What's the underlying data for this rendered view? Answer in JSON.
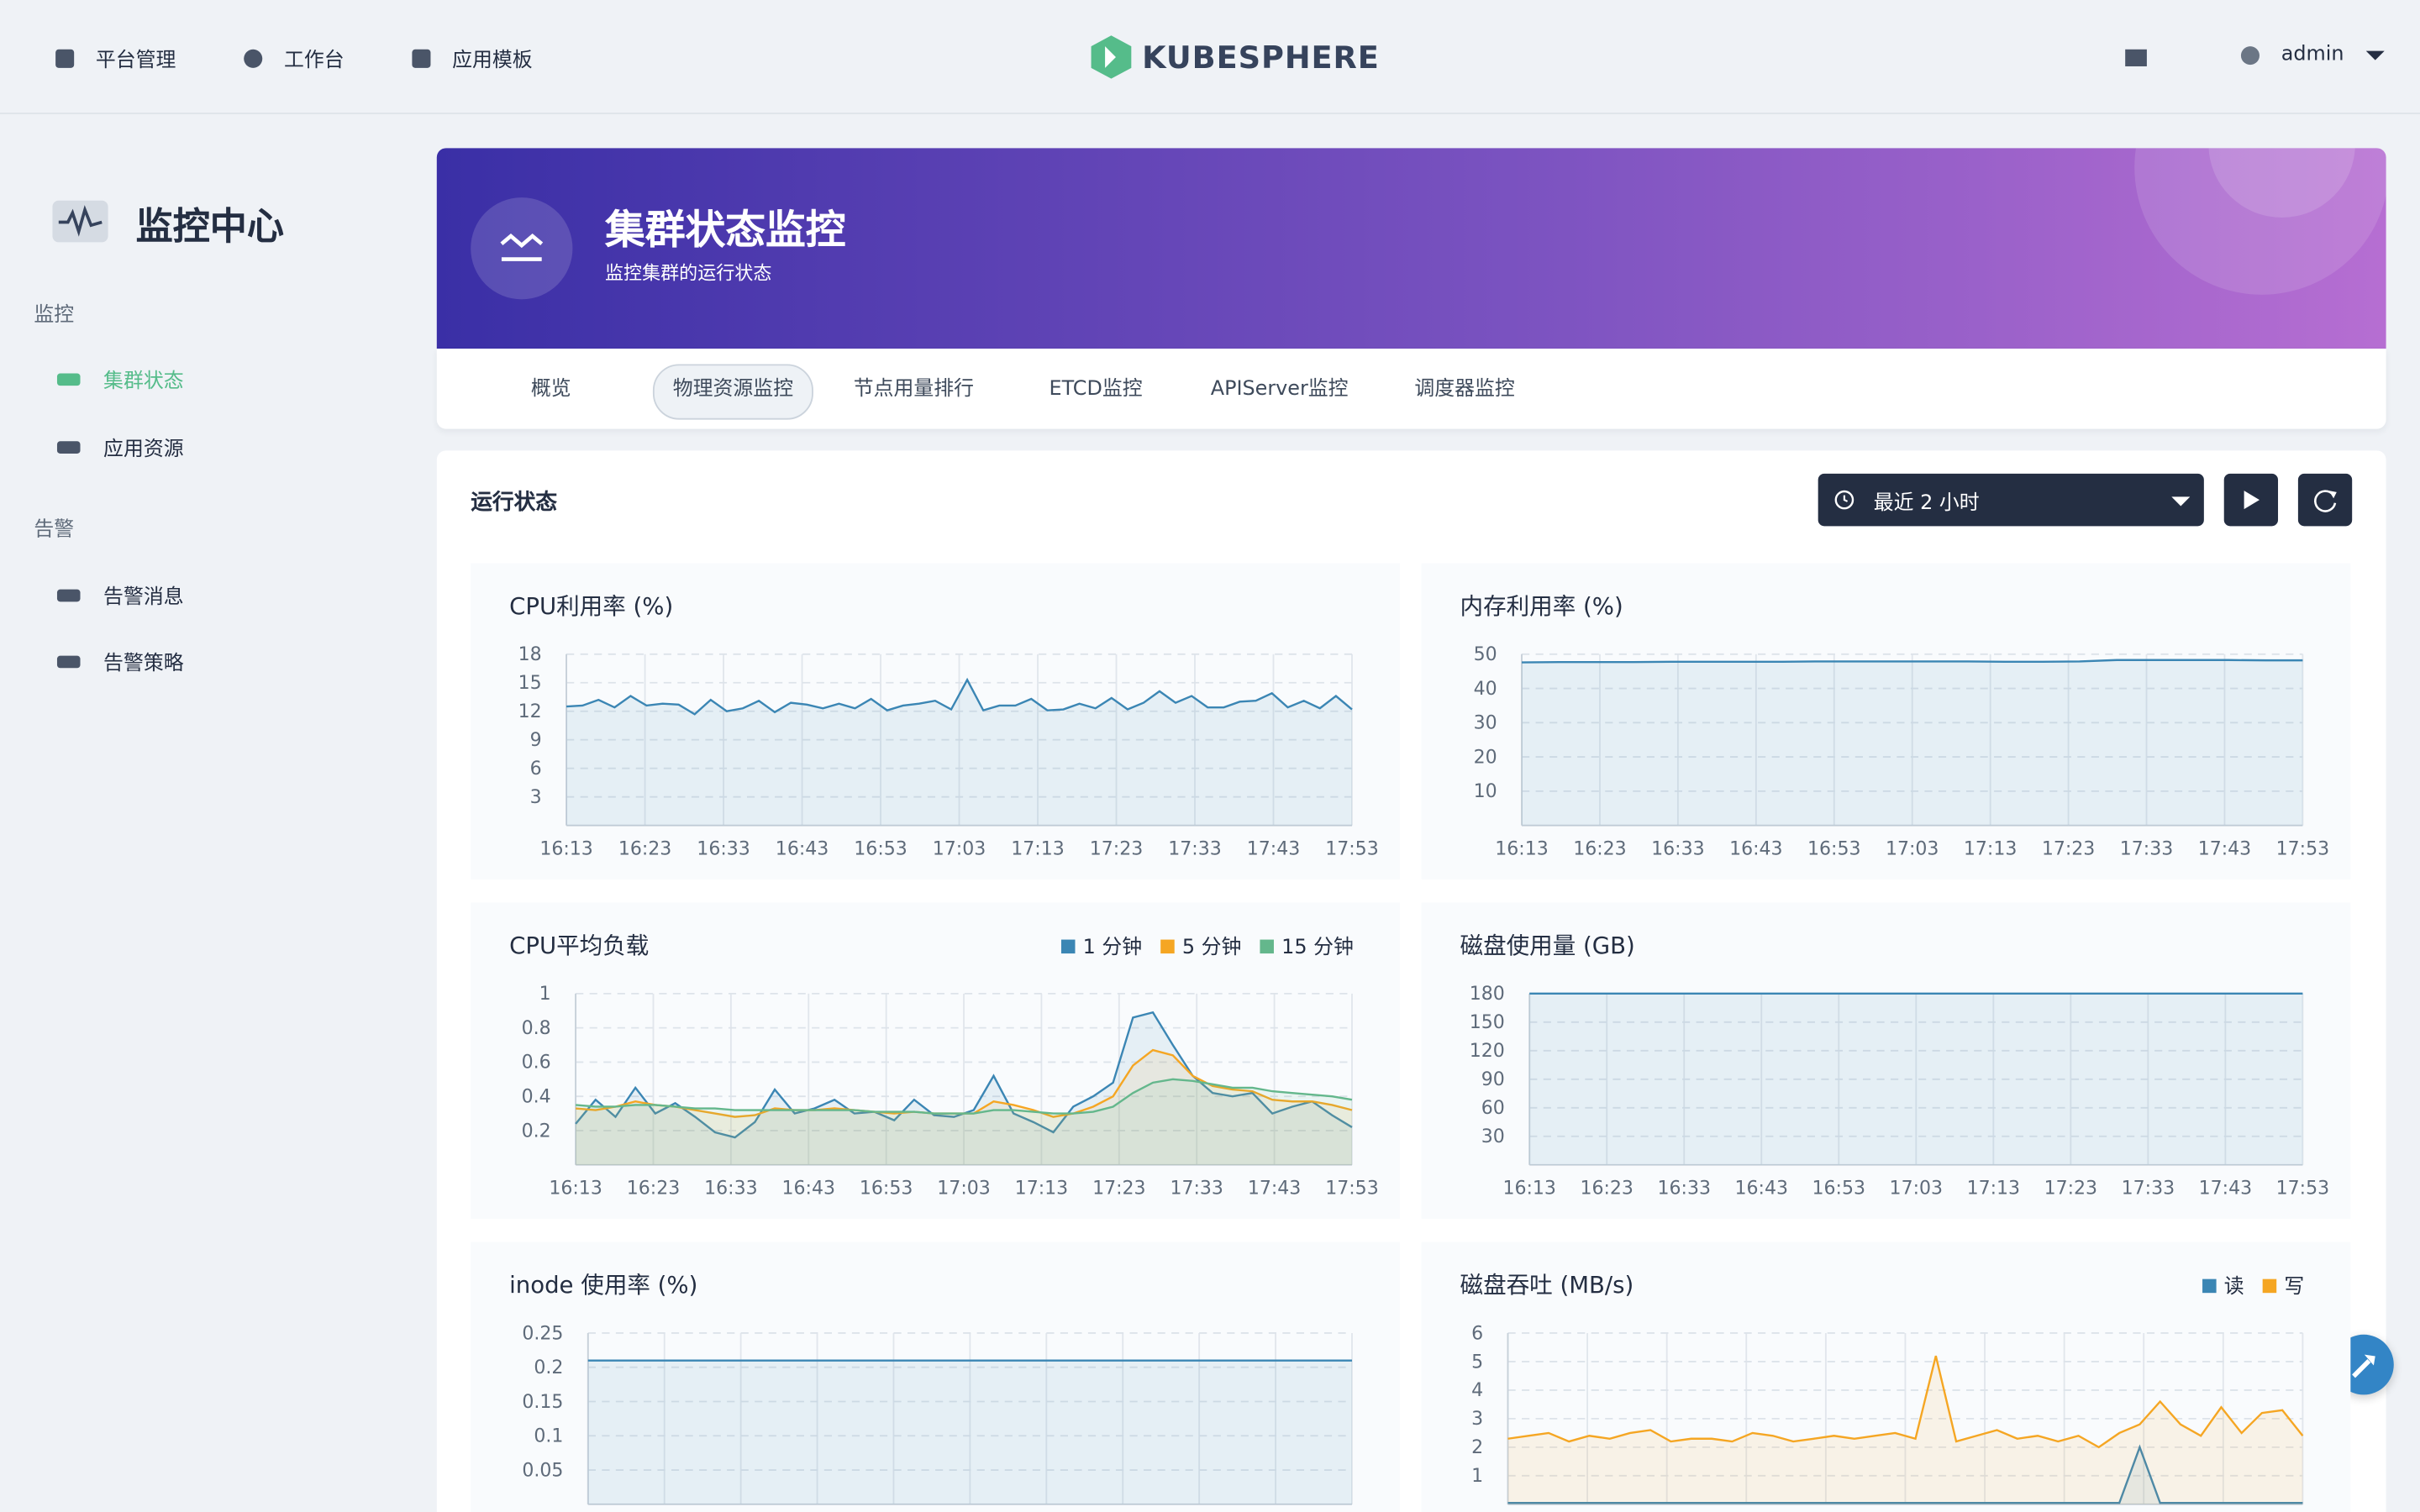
{
  "nav": {
    "items": [
      "平台管理",
      "工作台",
      "应用模板"
    ],
    "logo": "KUBESPHERE",
    "user": "admin"
  },
  "sidebar": {
    "title": "监控中心",
    "groups": [
      {
        "label": "监控",
        "items": [
          "集群状态",
          "应用资源"
        ]
      },
      {
        "label": "告警",
        "items": [
          "告警消息",
          "告警策略"
        ]
      }
    ]
  },
  "banner": {
    "title": "集群状态监控",
    "subtitle": "监控集群的运行状态"
  },
  "tabs": [
    "概览",
    "物理资源监控",
    "节点用量排行",
    "ETCD监控",
    "APIServer监控",
    "调度器监控"
  ],
  "panel": {
    "title": "运行状态",
    "time_range": "最近 2 小时"
  },
  "chart_data": [
    {
      "type": "line",
      "title": "CPU利用率 (%)",
      "x_labels": [
        "16:13",
        "16:23",
        "16:33",
        "16:43",
        "16:53",
        "17:03",
        "17:13",
        "17:23",
        "17:33",
        "17:43",
        "17:53"
      ],
      "ylim": [
        0,
        18
      ],
      "yticks": [
        3,
        6,
        9,
        12,
        15,
        18
      ],
      "grid": true,
      "color": "#3b86b4",
      "values": [
        12.5,
        12.6,
        13.2,
        12.4,
        13.6,
        12.6,
        12.8,
        12.7,
        11.7,
        13.2,
        12.0,
        12.3,
        13.1,
        11.9,
        12.9,
        12.7,
        12.3,
        12.8,
        12.3,
        13.3,
        12.1,
        12.6,
        12.8,
        13.1,
        12.2,
        15.3,
        12.1,
        12.6,
        12.6,
        13.3,
        12.1,
        12.2,
        12.8,
        12.3,
        13.4,
        12.2,
        12.9,
        14.1,
        12.9,
        13.6,
        12.4,
        12.4,
        13.0,
        13.1,
        13.9,
        12.4,
        13.1,
        12.3,
        13.6,
        12.2
      ]
    },
    {
      "type": "line",
      "title": "内存利用率 (%)",
      "x_labels": [
        "16:13",
        "16:23",
        "16:33",
        "16:43",
        "16:53",
        "17:03",
        "17:13",
        "17:23",
        "17:33",
        "17:43",
        "17:53"
      ],
      "ylim": [
        0,
        50
      ],
      "yticks": [
        10,
        20,
        30,
        40,
        50
      ],
      "grid": true,
      "color": "#3b86b4",
      "values": [
        47.6,
        47.7,
        47.7,
        47.7,
        47.8,
        47.8,
        47.8,
        47.8,
        47.9,
        47.9,
        47.9,
        47.9,
        47.9,
        47.8,
        47.8,
        47.9,
        48.3,
        48.3,
        48.3,
        48.3,
        48.2,
        48.2
      ]
    },
    {
      "type": "line",
      "title": "CPU平均负载",
      "x_labels": [
        "16:13",
        "16:23",
        "16:33",
        "16:43",
        "16:53",
        "17:03",
        "17:13",
        "17:23",
        "17:33",
        "17:43",
        "17:53"
      ],
      "ylim": [
        0,
        1
      ],
      "yticks": [
        0.2,
        0.4,
        0.6,
        0.8,
        1
      ],
      "grid": true,
      "legend": "top-right",
      "series": [
        {
          "name": "1 分钟",
          "color": "#3b86b4",
          "values": [
            0.24,
            0.38,
            0.28,
            0.45,
            0.3,
            0.36,
            0.28,
            0.19,
            0.16,
            0.25,
            0.44,
            0.3,
            0.33,
            0.38,
            0.3,
            0.31,
            0.26,
            0.38,
            0.29,
            0.28,
            0.32,
            0.52,
            0.3,
            0.25,
            0.19,
            0.34,
            0.4,
            0.48,
            0.86,
            0.89,
            0.7,
            0.52,
            0.42,
            0.4,
            0.42,
            0.3,
            0.34,
            0.37,
            0.29,
            0.22
          ]
        },
        {
          "name": "5 分钟",
          "color": "#f5a623",
          "values": [
            0.33,
            0.32,
            0.34,
            0.37,
            0.35,
            0.34,
            0.32,
            0.3,
            0.28,
            0.29,
            0.33,
            0.32,
            0.32,
            0.33,
            0.32,
            0.31,
            0.3,
            0.31,
            0.3,
            0.3,
            0.3,
            0.37,
            0.35,
            0.32,
            0.28,
            0.3,
            0.34,
            0.4,
            0.58,
            0.67,
            0.64,
            0.52,
            0.46,
            0.44,
            0.43,
            0.38,
            0.37,
            0.37,
            0.35,
            0.32
          ]
        },
        {
          "name": "15 分钟",
          "color": "#64b78c",
          "values": [
            0.35,
            0.34,
            0.34,
            0.35,
            0.35,
            0.34,
            0.33,
            0.33,
            0.32,
            0.32,
            0.32,
            0.32,
            0.32,
            0.32,
            0.32,
            0.31,
            0.31,
            0.31,
            0.3,
            0.3,
            0.3,
            0.32,
            0.32,
            0.31,
            0.3,
            0.3,
            0.31,
            0.34,
            0.42,
            0.48,
            0.5,
            0.49,
            0.47,
            0.45,
            0.45,
            0.43,
            0.42,
            0.41,
            0.4,
            0.38
          ]
        }
      ]
    },
    {
      "type": "line",
      "title": "磁盘使用量 (GB)",
      "x_labels": [
        "16:13",
        "16:23",
        "16:33",
        "16:43",
        "16:53",
        "17:03",
        "17:13",
        "17:23",
        "17:33",
        "17:43",
        "17:53"
      ],
      "ylim": [
        0,
        180
      ],
      "yticks": [
        30,
        60,
        90,
        120,
        150,
        180
      ],
      "grid": true,
      "color": "#3b86b4",
      "values": [
        180,
        180,
        180,
        180,
        180,
        180,
        180,
        180,
        180,
        180,
        180
      ]
    },
    {
      "type": "line",
      "title": "inode 使用率 (%)",
      "x_labels": [
        "16:13",
        "16:23",
        "16:33",
        "16:43",
        "16:53",
        "17:03",
        "17:13",
        "17:23",
        "17:33",
        "17:43",
        "17:53"
      ],
      "ylim": [
        0,
        0.25
      ],
      "yticks": [
        0.05,
        0.1,
        0.15,
        0.2,
        0.25
      ],
      "grid": true,
      "color": "#3b86b4",
      "values": [
        0.21,
        0.21,
        0.21,
        0.21,
        0.21,
        0.21,
        0.21,
        0.21,
        0.21,
        0.21,
        0.21
      ]
    },
    {
      "type": "line",
      "title": "磁盘吞吐 (MB/s)",
      "x_labels": [
        "16:13",
        "16:23",
        "16:33",
        "16:43",
        "16:53",
        "17:03",
        "17:13",
        "17:23",
        "17:33",
        "17:43",
        "17:53"
      ],
      "ylim": [
        0,
        6
      ],
      "yticks": [
        1,
        2,
        3,
        4,
        5,
        6
      ],
      "grid": true,
      "legend": "top-right",
      "series": [
        {
          "name": "读",
          "color": "#3b86b4",
          "values": [
            0.05,
            0.05,
            0.05,
            0.05,
            0.05,
            0.05,
            0.05,
            0.05,
            0.05,
            0.05,
            0.05,
            0.05,
            0.05,
            0.05,
            0.05,
            0.05,
            0.05,
            0.05,
            0.05,
            0.05,
            0.05,
            0.05,
            0.05,
            0.05,
            0.05,
            0.05,
            0.05,
            0.05,
            0.05,
            0.05,
            0.05,
            2.0,
            0.05,
            0.05,
            0.05,
            0.05,
            0.05,
            0.05,
            0.05,
            0.05
          ]
        },
        {
          "name": "写",
          "color": "#f5a623",
          "values": [
            2.3,
            2.4,
            2.5,
            2.2,
            2.4,
            2.3,
            2.5,
            2.6,
            2.2,
            2.3,
            2.3,
            2.2,
            2.5,
            2.4,
            2.2,
            2.3,
            2.4,
            2.3,
            2.4,
            2.5,
            2.3,
            5.2,
            2.2,
            2.4,
            2.6,
            2.3,
            2.4,
            2.2,
            2.4,
            2.0,
            2.5,
            2.8,
            3.6,
            2.8,
            2.4,
            3.4,
            2.5,
            3.2,
            3.3,
            2.4
          ]
        }
      ]
    }
  ]
}
